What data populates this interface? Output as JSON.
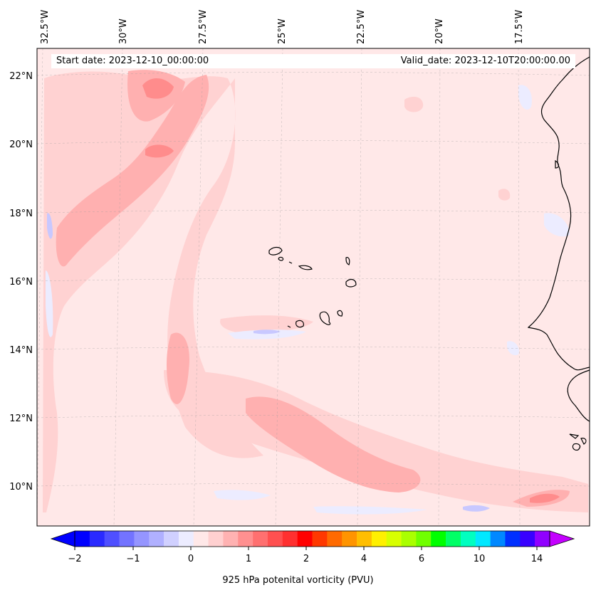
{
  "header": {
    "start_label": "Start date: 2023-12-10_00:00:00",
    "valid_label": "Valid_date: 2023-12-10T20:00:00.00"
  },
  "longitude_labels": [
    "32.5°W",
    "30°W",
    "27.5°W",
    "25°W",
    "22.5°W",
    "20°W",
    "17.5°W"
  ],
  "latitude_labels": [
    "22°N",
    "20°N",
    "18°N",
    "16°N",
    "14°N",
    "12°N",
    "10°N"
  ],
  "colorbar": {
    "label": "925 hPa potenital vorticity (PVU)",
    "tick_labels": [
      "−2",
      "−1",
      "0",
      "1",
      "2",
      "4",
      "6",
      "10",
      "14"
    ],
    "colors": [
      "#0000ff",
      "#2a2aff",
      "#4f4fff",
      "#7373ff",
      "#9595ff",
      "#b0b0ff",
      "#d0d0ff",
      "#ececff",
      "#ffe8e8",
      "#ffd0d0",
      "#ffb2b2",
      "#ff9090",
      "#ff7070",
      "#ff5050",
      "#ff3030",
      "#ff0000",
      "#ff3800",
      "#ff6a00",
      "#ff9400",
      "#ffbe00",
      "#fff000",
      "#d8ff00",
      "#aaff00",
      "#70ff00",
      "#00ff00",
      "#00ff66",
      "#00ffc0",
      "#00e8ff",
      "#0088ff",
      "#0030ff",
      "#3800ff",
      "#9000ff"
    ],
    "under_color": "#0000ff",
    "over_color": "#c400ff"
  },
  "colors": {
    "background_field": "#ffe8e8",
    "light_positive": "#ffd2d2",
    "medium_positive": "#ffb0b0",
    "strong_positive": "#ff8c8c",
    "weak_negative": "#ececff",
    "negative": "#c8c8ff",
    "coastline": "#000000"
  }
}
